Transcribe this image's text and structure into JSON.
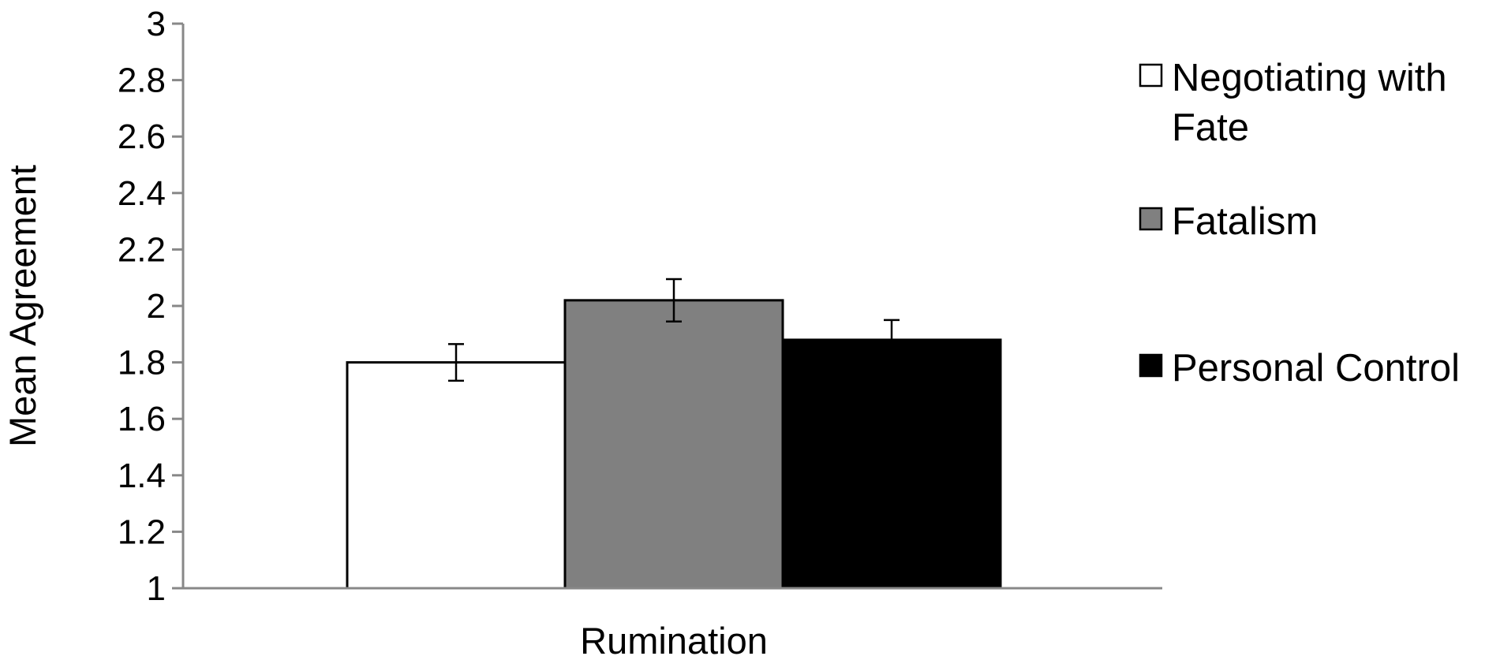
{
  "chart_data": {
    "type": "bar",
    "categories": [
      "Rumination"
    ],
    "series": [
      {
        "name": "Negotiating with Fate",
        "values": [
          1.8
        ],
        "error": [
          0.065
        ],
        "color": "#ffffff"
      },
      {
        "name": "Fatalism",
        "values": [
          2.02
        ],
        "error": [
          0.075
        ],
        "color": "#808080"
      },
      {
        "name": "Personal Control",
        "values": [
          1.88
        ],
        "error": [
          0.07
        ],
        "color": "#000000"
      }
    ],
    "legend_lines": [
      [
        "Negotiating with",
        "Fate"
      ],
      [
        "Fatalism"
      ],
      [
        "Personal Control"
      ]
    ],
    "title": "",
    "xlabel": "Rumination",
    "ylabel": "Mean Agreement",
    "ylim": [
      1,
      3
    ],
    "yticks": [
      "1",
      "1.2",
      "1.4",
      "1.6",
      "1.8",
      "2",
      "2.2",
      "2.4",
      "2.6",
      "2.8",
      "3"
    ],
    "grid": false,
    "legend_position": "right"
  }
}
